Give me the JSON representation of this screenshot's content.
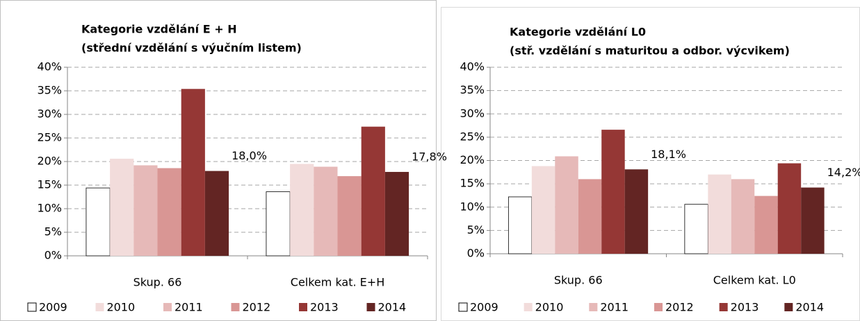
{
  "chart_data": [
    {
      "type": "bar",
      "title": "Kategorie vzdělání  E + H",
      "subtitle": "(střední vzdělání s výučním listem)",
      "categories": [
        "Skup. 66",
        "Celkem kat. E+H"
      ],
      "series": [
        {
          "name": "2009",
          "color": "#ffffff",
          "values": [
            14.4,
            13.6
          ]
        },
        {
          "name": "2010",
          "color": "#f2dcdb",
          "values": [
            20.6,
            19.5
          ]
        },
        {
          "name": "2011",
          "color": "#e6b9b8",
          "values": [
            19.2,
            18.9
          ]
        },
        {
          "name": "2012",
          "color": "#d99694",
          "values": [
            18.6,
            16.9
          ]
        },
        {
          "name": "2013",
          "color": "#953735",
          "values": [
            35.4,
            27.4
          ]
        },
        {
          "name": "2014",
          "color": "#632523",
          "values": [
            18.0,
            17.8
          ],
          "value_labels": [
            "18,0%",
            "17,8%"
          ]
        }
      ],
      "ylim": [
        0,
        40
      ],
      "yticks": [
        {
          "value": 0,
          "label": "0%"
        },
        {
          "value": 5,
          "label": "5%"
        },
        {
          "value": 10,
          "label": "10%"
        },
        {
          "value": 15,
          "label": "15%"
        },
        {
          "value": 20,
          "label": "20%"
        },
        {
          "value": 25,
          "label": "25%"
        },
        {
          "value": 30,
          "label": "30%"
        },
        {
          "value": 35,
          "label": "35%"
        },
        {
          "value": 40,
          "label": "40%"
        }
      ],
      "grid": true,
      "legend": "bottom"
    },
    {
      "type": "bar",
      "title": "Kategorie vzdělání  L0",
      "subtitle": "(stř. vzdělání  s maturitou a odbor. výcvikem)",
      "categories": [
        "Skup. 66",
        "Celkem kat. L0"
      ],
      "series": [
        {
          "name": "2009",
          "color": "#ffffff",
          "values": [
            12.2,
            10.6
          ]
        },
        {
          "name": "2010",
          "color": "#f2dcdb",
          "values": [
            18.8,
            17.0
          ]
        },
        {
          "name": "2011",
          "color": "#e6b9b8",
          "values": [
            20.9,
            16.0
          ]
        },
        {
          "name": "2012",
          "color": "#d99694",
          "values": [
            16.0,
            12.4
          ]
        },
        {
          "name": "2013",
          "color": "#953735",
          "values": [
            26.6,
            19.4
          ]
        },
        {
          "name": "2014",
          "color": "#632523",
          "values": [
            18.1,
            14.2
          ],
          "value_labels": [
            "18,1%",
            "14,2%"
          ]
        }
      ],
      "ylim": [
        0,
        40
      ],
      "yticks": [
        {
          "value": 0,
          "label": "0%"
        },
        {
          "value": 5,
          "label": "5%"
        },
        {
          "value": 10,
          "label": "10%"
        },
        {
          "value": 15,
          "label": "15%"
        },
        {
          "value": 20,
          "label": "20%"
        },
        {
          "value": 25,
          "label": "25%"
        },
        {
          "value": 30,
          "label": "30%"
        },
        {
          "value": 35,
          "label": "35%"
        },
        {
          "value": 40,
          "label": "40%"
        }
      ],
      "grid": true,
      "legend": "bottom"
    }
  ]
}
